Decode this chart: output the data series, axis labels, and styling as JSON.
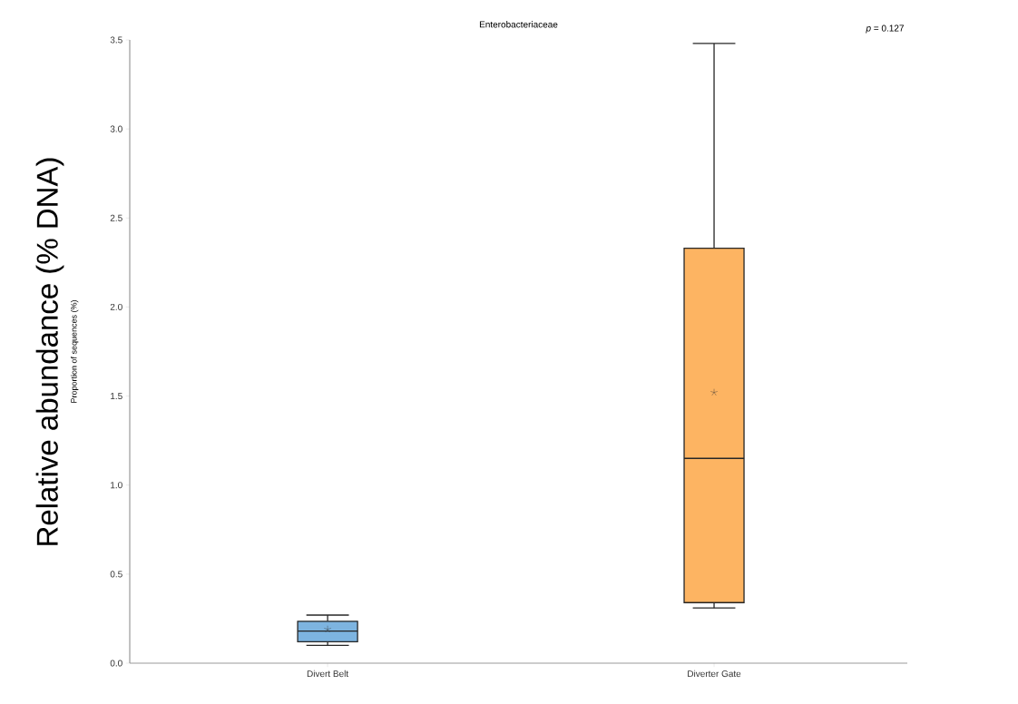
{
  "chart_data": {
    "type": "box",
    "title": "Enterobacteriaceae",
    "ylabel": "Proportion of sequences (%)",
    "categories": [
      "Divert Belt",
      "Diverter Gate"
    ],
    "colors": [
      "#7db4e0",
      "#fdb462"
    ],
    "boxes": [
      {
        "low": 0.1,
        "q1": 0.12,
        "median": 0.18,
        "q3": 0.235,
        "high": 0.27,
        "mean": 0.19
      },
      {
        "low": 0.31,
        "q1": 0.34,
        "median": 1.15,
        "q3": 2.33,
        "high": 3.48,
        "mean": 1.52
      }
    ],
    "ylim": [
      0,
      3.5
    ],
    "yticks": [
      {
        "value": 0,
        "label": "0.0"
      },
      0.5,
      {
        "value": 1,
        "label": "1.0"
      },
      1.5,
      {
        "value": 2,
        "label": "2.0"
      },
      2.5,
      {
        "value": 3,
        "label": "3.0"
      },
      3.5
    ],
    "annotations": [
      "*p* = 0.127",
      "Relative abundance (% DNA)"
    ]
  }
}
